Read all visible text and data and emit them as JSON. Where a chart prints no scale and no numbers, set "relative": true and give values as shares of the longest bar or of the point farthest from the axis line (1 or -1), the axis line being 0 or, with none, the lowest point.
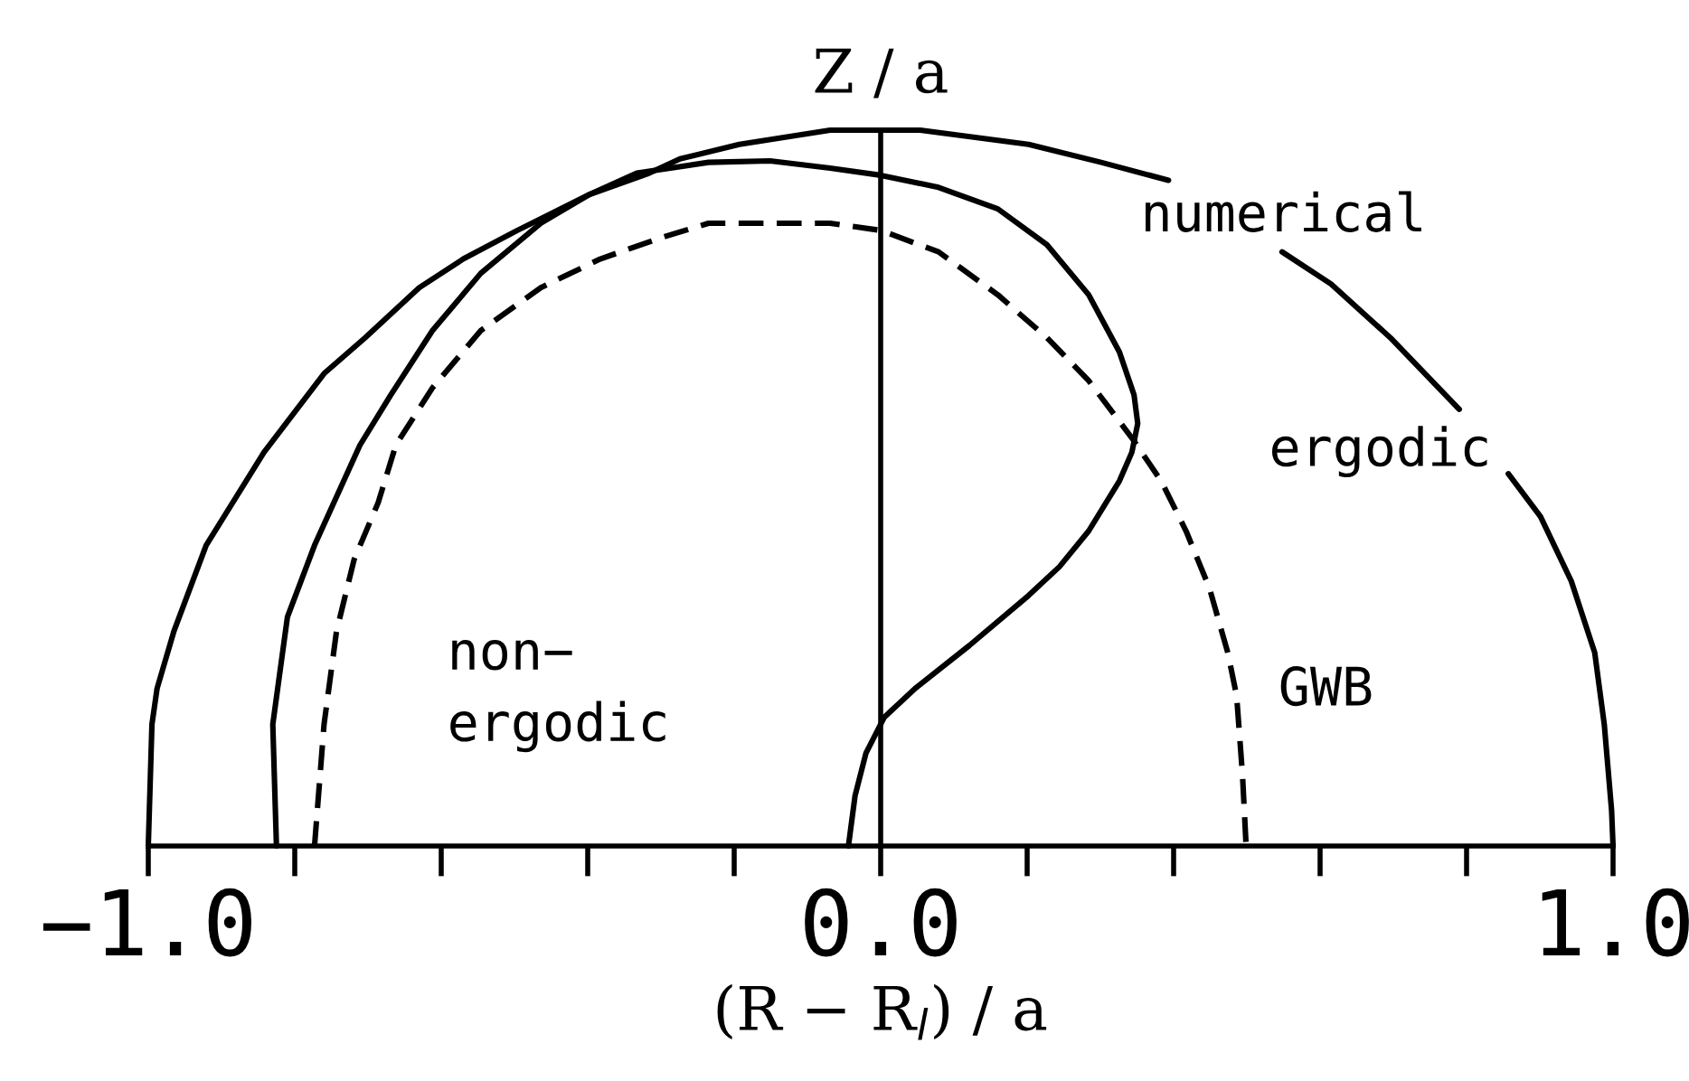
{
  "chart_data": {
    "type": "line",
    "relative": true,
    "xlabel": "(R − R$_{l}$) / a",
    "ylabel": "Z / a",
    "xlim": [
      -1.0,
      1.0
    ],
    "xticks": [
      {
        "value": -1.0,
        "label": "−1.0"
      },
      {
        "value": 0.0,
        "label": "0.0"
      },
      {
        "value": 1.0,
        "label": "1.0"
      }
    ],
    "series": [
      {
        "color": "#000000",
        "line_style": "solid",
        "x": [
          -1.0,
          -0.995,
          -0.988,
          -0.965,
          -0.921,
          -0.842,
          -0.76,
          -0.704,
          -0.63,
          -0.57,
          -0.496,
          -0.398,
          -0.316,
          -0.274,
          -0.193,
          -0.069,
          0.0,
          0.054,
          0.202,
          0.301,
          0.393,
          0.47,
          0.548,
          0.615,
          0.696,
          0.79,
          0.82,
          0.857,
          0.901,
          0.943,
          0.975,
          0.988,
          0.998,
          1.0
        ],
        "values": [
          0.0,
          0.17,
          0.22,
          0.3,
          0.42,
          0.55,
          0.66,
          0.71,
          0.78,
          0.82,
          0.86,
          0.91,
          0.94,
          0.96,
          0.98,
          1.0,
          1.0,
          1.0,
          0.98,
          0.955,
          0.93,
          null,
          0.83,
          0.785,
          0.71,
          0.61,
          null,
          0.52,
          0.46,
          0.37,
          0.27,
          0.17,
          0.05,
          0.0
        ]
      },
      {
        "color": "#000000",
        "line_style": "solid",
        "x": [
          -0.825,
          -0.83,
          -0.81,
          -0.773,
          -0.711,
          -0.669,
          -0.612,
          -0.546,
          -0.464,
          -0.398,
          -0.333,
          -0.235,
          -0.151,
          -0.069,
          0.0,
          0.079,
          0.16,
          0.227,
          0.284,
          0.326,
          0.346,
          0.351,
          0.343,
          0.326,
          0.284,
          0.244,
          0.202,
          0.121,
          0.047,
          0.005,
          -0.02,
          -0.035,
          -0.044
        ],
        "values": [
          0.0,
          0.17,
          0.32,
          0.42,
          0.56,
          0.63,
          0.72,
          0.8,
          0.87,
          0.91,
          0.94,
          0.955,
          0.957,
          0.947,
          0.937,
          0.92,
          0.89,
          0.84,
          0.77,
          0.69,
          0.63,
          0.59,
          0.55,
          0.51,
          0.44,
          0.39,
          0.35,
          0.28,
          0.22,
          0.18,
          0.13,
          0.07,
          0.0
        ]
      },
      {
        "color": "#000000",
        "line_style": "dashed",
        "x": [
          -0.773,
          -0.76,
          -0.743,
          -0.719,
          -0.686,
          -0.662,
          -0.612,
          -0.546,
          -0.464,
          -0.383,
          -0.299,
          -0.235,
          -0.151,
          -0.069,
          0.0,
          0.079,
          0.16,
          0.227,
          0.284,
          0.343,
          0.383,
          0.417,
          0.449,
          0.474,
          0.486,
          0.494,
          0.499
        ],
        "values": [
          0.0,
          0.17,
          0.3,
          0.4,
          0.48,
          0.56,
          0.64,
          0.72,
          0.78,
          0.82,
          0.85,
          0.87,
          0.87,
          0.87,
          0.86,
          0.83,
          0.77,
          0.71,
          0.65,
          0.57,
          0.51,
          0.44,
          0.36,
          0.27,
          0.21,
          0.1,
          0.0
        ]
      }
    ],
    "annotations": [
      "numerical",
      "ergodic",
      "non−\nergodic",
      "GWB"
    ]
  }
}
